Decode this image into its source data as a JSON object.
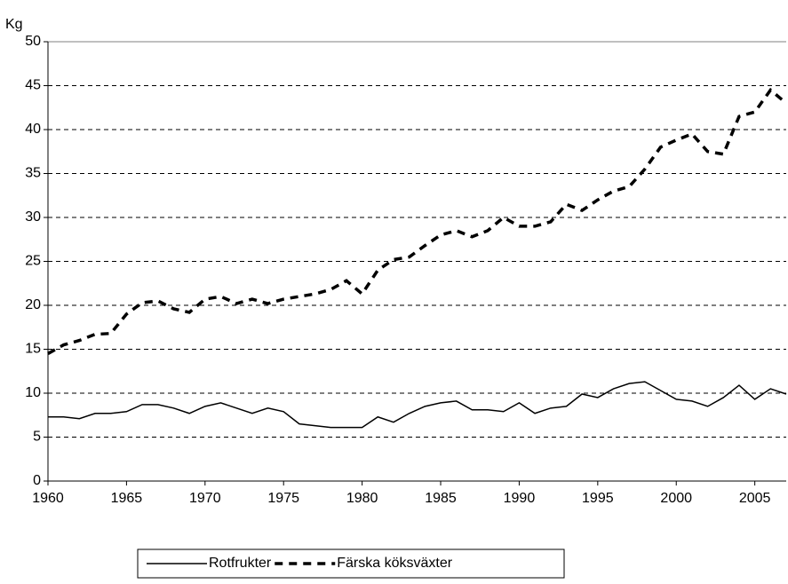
{
  "chart_data": {
    "type": "line",
    "y_label": "Kg",
    "x": [
      1960,
      1961,
      1962,
      1963,
      1964,
      1965,
      1966,
      1967,
      1968,
      1969,
      1970,
      1971,
      1972,
      1973,
      1974,
      1975,
      1976,
      1977,
      1978,
      1979,
      1980,
      1981,
      1982,
      1983,
      1984,
      1985,
      1986,
      1987,
      1988,
      1989,
      1990,
      1991,
      1992,
      1993,
      1994,
      1995,
      1996,
      1997,
      1998,
      1999,
      2000,
      2001,
      2002,
      2003,
      2004,
      2005,
      2006,
      2007
    ],
    "series": [
      {
        "name": "Rotfrukter",
        "color": "#000000",
        "dash": "solid",
        "values": [
          7.3,
          7.3,
          7.1,
          7.7,
          7.7,
          7.9,
          8.7,
          8.7,
          8.3,
          7.7,
          8.5,
          8.9,
          8.3,
          7.7,
          8.3,
          7.9,
          6.5,
          6.3,
          6.1,
          6.1,
          6.1,
          7.3,
          6.7,
          7.7,
          8.5,
          8.9,
          9.1,
          8.1,
          8.1,
          7.9,
          8.9,
          7.7,
          8.3,
          8.5,
          9.9,
          9.5,
          10.5,
          11.1,
          11.3,
          10.3,
          9.3,
          9.1,
          8.5,
          9.5,
          10.9,
          9.3,
          10.5,
          9.9
        ]
      },
      {
        "name": "Färska köksväxter",
        "color": "#000000",
        "dash": "dashed",
        "values": [
          14.5,
          15.5,
          16.0,
          16.7,
          16.8,
          19.0,
          20.3,
          20.5,
          19.6,
          19.2,
          20.7,
          21.0,
          20.2,
          20.7,
          20.2,
          20.7,
          21.0,
          21.3,
          21.8,
          22.8,
          21.3,
          24.0,
          25.2,
          25.5,
          26.8,
          28.0,
          28.5,
          27.8,
          28.5,
          30.0,
          29.0,
          29.0,
          29.5,
          31.5,
          30.8,
          32.0,
          33.0,
          33.5,
          35.5,
          38.0,
          38.8,
          39.5,
          37.5,
          37.2,
          41.5,
          42.0,
          44.5,
          43.0
        ]
      }
    ],
    "xlim": [
      1960,
      2007
    ],
    "xticks": [
      1960,
      1965,
      1970,
      1975,
      1980,
      1985,
      1990,
      1995,
      2000,
      2005
    ],
    "ylim": [
      0,
      50
    ],
    "yticks": [
      0,
      5,
      10,
      15,
      20,
      25,
      30,
      35,
      40,
      45,
      50
    ],
    "grid": true,
    "legend": "bottom"
  }
}
